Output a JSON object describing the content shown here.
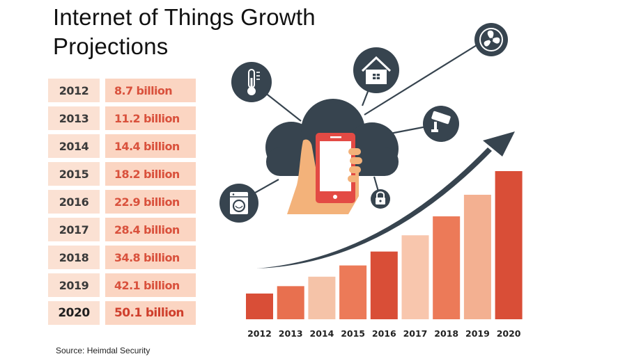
{
  "title": "Internet of Things Growth Projections",
  "source": "Source: Heimdal Security",
  "table": {
    "rows": [
      {
        "year": "2012",
        "value": "8.7 billion"
      },
      {
        "year": "2013",
        "value": "11.2 billion"
      },
      {
        "year": "2014",
        "value": "14.4 billion"
      },
      {
        "year": "2015",
        "value": "18.2 billion"
      },
      {
        "year": "2016",
        "value": "22.9 billion"
      },
      {
        "year": "2017",
        "value": "28.4 billion"
      },
      {
        "year": "2018",
        "value": "34.8 billion"
      },
      {
        "year": "2019",
        "value": "42.1 billion"
      },
      {
        "year": "2020",
        "value": "50.1 billion"
      }
    ]
  },
  "chart_data": {
    "type": "bar",
    "title": "Internet of Things Growth Projections",
    "categories": [
      "2012",
      "2013",
      "2014",
      "2015",
      "2016",
      "2017",
      "2018",
      "2019",
      "2020"
    ],
    "values": [
      8.7,
      11.2,
      14.4,
      18.2,
      22.9,
      28.4,
      34.8,
      42.1,
      50.1
    ],
    "units": "billion",
    "bar_colors": [
      "#d94e37",
      "#e8704f",
      "#f5c3a8",
      "#ec7a58",
      "#d94e37",
      "#f8c6ad",
      "#ec7a58",
      "#f3b091",
      "#d94e37"
    ],
    "trend_arrow": true,
    "grid": false
  },
  "icons": [
    "thermometer-icon",
    "house-icon",
    "fan-icon",
    "security-camera-icon",
    "padlock-icon",
    "washing-machine-icon",
    "cloud-icon",
    "smartphone-icon"
  ],
  "colors": {
    "dark_slate": "#37444f",
    "accent_red": "#d94e37",
    "phone_red": "#e34a44",
    "hand": "#f3b27a"
  }
}
